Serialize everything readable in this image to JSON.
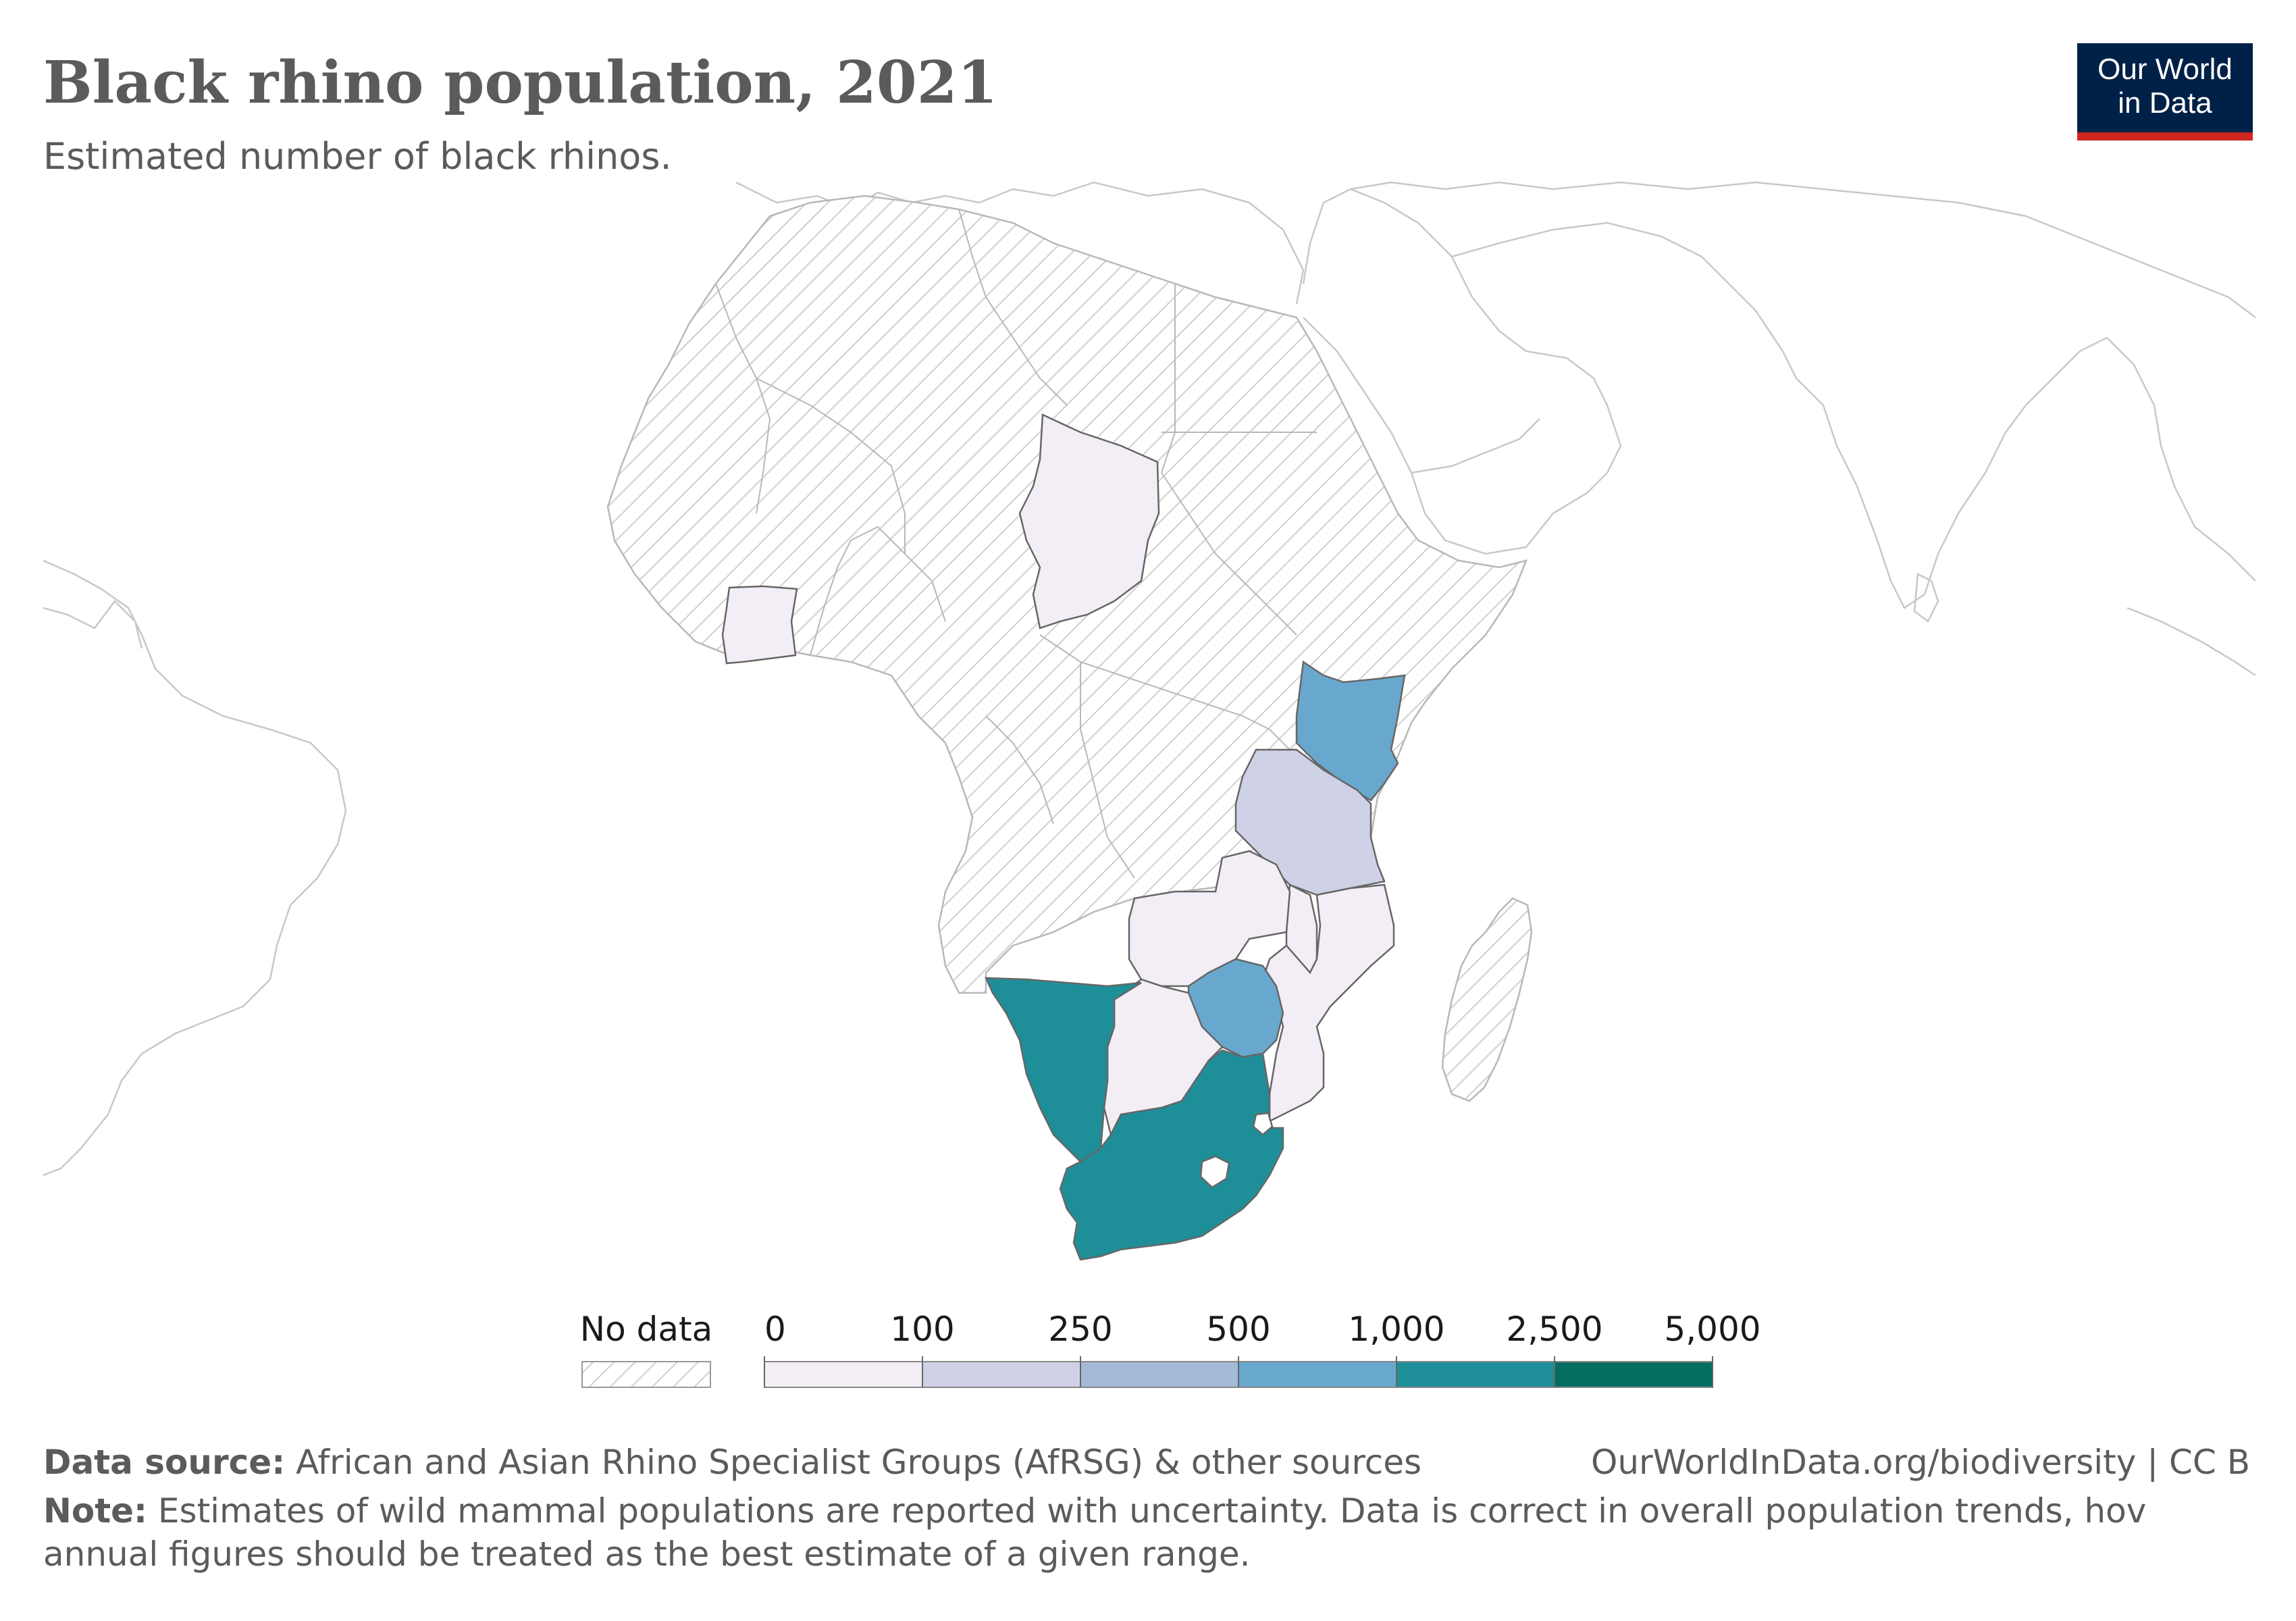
{
  "title": "Black rhino population, 2021",
  "subtitle": "Estimated number of black rhinos.",
  "logo": {
    "line1": "Our World",
    "line2": "in Data"
  },
  "legend": {
    "no_data_label": "No data",
    "ticks": [
      "0",
      "100",
      "250",
      "500",
      "1,000",
      "2,500",
      "5,000"
    ],
    "bins": [
      {
        "from": 0,
        "to": 100,
        "color": "#f3eef6"
      },
      {
        "from": 100,
        "to": 250,
        "color": "#cfd1e6"
      },
      {
        "from": 250,
        "to": 500,
        "color": "#a5b9d9"
      },
      {
        "from": 500,
        "to": 1000,
        "color": "#69a8ce"
      },
      {
        "from": 1000,
        "to": 2500,
        "color": "#1e8f99"
      },
      {
        "from": 2500,
        "to": 5000,
        "color": "#036e60"
      }
    ]
  },
  "colors": {
    "no_data_hatch": "#cfcfcf",
    "border": "#b8b8b8"
  },
  "footer": {
    "source_label": "Data source:",
    "source_text": "African and Asian Rhino Specialist Groups (AfRSG) & other sources",
    "credit": "OurWorldInData.org/biodiversity | CC B",
    "note_label": "Note:",
    "note_line1": "Estimates of wild mammal populations are reported with uncertainty. Data is correct in overall population trends, hov",
    "note_line2": "annual figures should be treated as the best estimate of a given range."
  }
}
